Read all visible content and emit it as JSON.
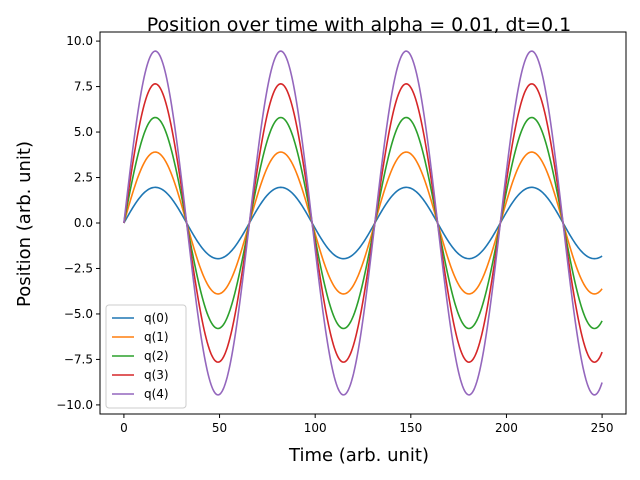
{
  "chart_data": {
    "type": "line",
    "title": "Position over time with alpha = 0.01, dt=0.1",
    "xlabel": "Time (arb. unit)",
    "ylabel": "Position (arb. unit)",
    "xlim": [
      -12.5,
      262.5
    ],
    "ylim": [
      -10.5,
      10.5
    ],
    "xticks": [
      0,
      50,
      100,
      150,
      200,
      250
    ],
    "xtick_labels": [
      "0",
      "50",
      "100",
      "150",
      "200",
      "250"
    ],
    "yticks": [
      -10.0,
      -7.5,
      -5.0,
      -2.5,
      0.0,
      2.5,
      5.0,
      7.5,
      10.0
    ],
    "ytick_labels": [
      "−10.0",
      "−7.5",
      "−5.0",
      "−2.5",
      "0.0",
      "2.5",
      "5.0",
      "7.5",
      "10.0"
    ],
    "legend_position": "lower-left",
    "grid": false,
    "x_start": 0,
    "x_end": 250,
    "period": 65.6,
    "series": [
      {
        "name": "q(0)",
        "amplitude": 1.96,
        "color": "#1f77b4"
      },
      {
        "name": "q(1)",
        "amplitude": 3.9,
        "color": "#ff7f0e"
      },
      {
        "name": "q(2)",
        "amplitude": 5.8,
        "color": "#2ca02c"
      },
      {
        "name": "q(3)",
        "amplitude": 7.65,
        "color": "#d62728"
      },
      {
        "name": "q(4)",
        "amplitude": 9.45,
        "color": "#9467bd"
      }
    ]
  }
}
